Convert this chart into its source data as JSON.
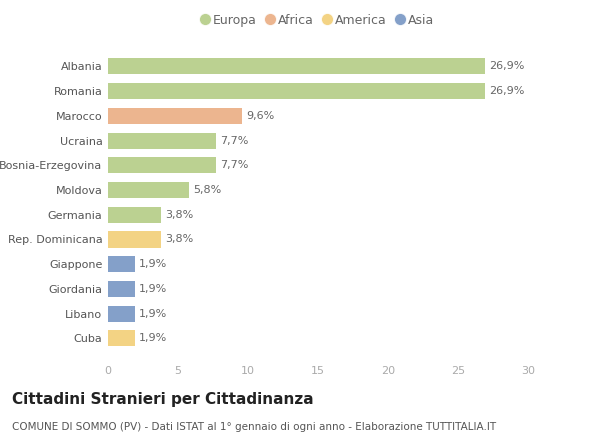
{
  "categories": [
    "Albania",
    "Romania",
    "Marocco",
    "Ucraina",
    "Bosnia-Erzegovina",
    "Moldova",
    "Germania",
    "Rep. Dominicana",
    "Giappone",
    "Giordania",
    "Libano",
    "Cuba"
  ],
  "values": [
    26.9,
    26.9,
    9.6,
    7.7,
    7.7,
    5.8,
    3.8,
    3.8,
    1.9,
    1.9,
    1.9,
    1.9
  ],
  "labels": [
    "26,9%",
    "26,9%",
    "9,6%",
    "7,7%",
    "7,7%",
    "5,8%",
    "3,8%",
    "3,8%",
    "1,9%",
    "1,9%",
    "1,9%",
    "1,9%"
  ],
  "continent": [
    "Europa",
    "Europa",
    "Africa",
    "Europa",
    "Europa",
    "Europa",
    "Europa",
    "America",
    "Asia",
    "Asia",
    "Asia",
    "America"
  ],
  "colors": {
    "Europa": "#afc97e",
    "Africa": "#e9a87c",
    "America": "#f2cc6e",
    "Asia": "#6e8fc0"
  },
  "legend_order": [
    "Europa",
    "Africa",
    "America",
    "Asia"
  ],
  "xlim": [
    0,
    30
  ],
  "xticks": [
    0,
    5,
    10,
    15,
    20,
    25,
    30
  ],
  "title": "Cittadini Stranieri per Cittadinanza",
  "subtitle": "COMUNE DI SOMMO (PV) - Dati ISTAT al 1° gennaio di ogni anno - Elaborazione TUTTITALIA.IT",
  "background_color": "#ffffff",
  "bar_height": 0.65,
  "title_fontsize": 11,
  "subtitle_fontsize": 7.5,
  "label_fontsize": 8,
  "tick_fontsize": 8,
  "legend_fontsize": 9
}
